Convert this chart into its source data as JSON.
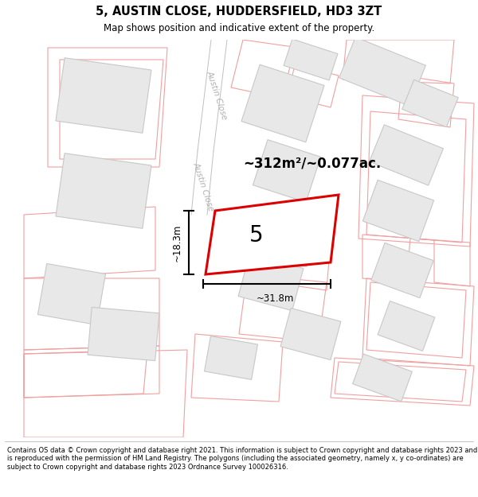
{
  "title": "5, AUSTIN CLOSE, HUDDERSFIELD, HD3 3ZT",
  "subtitle": "Map shows position and indicative extent of the property.",
  "footer": "Contains OS data © Crown copyright and database right 2021. This information is subject to Crown copyright and database rights 2023 and is reproduced with the permission of\nHM Land Registry. The polygons (including the associated geometry, namely x, y co-ordinates) are subject to Crown copyright and database rights 2023 Ordnance Survey\n100026316.",
  "area_label": "~312m²/~0.077ac.",
  "width_label": "~31.8m",
  "height_label": "~18.3m",
  "plot_number": "5",
  "road_label": "Austin Close",
  "bg_color": "#ffffff",
  "map_bg": "#ffffff",
  "building_fill": "#e8e8e8",
  "building_edge": "#c8c8c8",
  "road_fill": "#f8f8f8",
  "property_line_color": "#f0a0a0",
  "plot_edge_color": "#dd0000",
  "road_label_color": "#b0b0b0",
  "figsize": [
    6.0,
    6.25
  ],
  "dpi": 100
}
